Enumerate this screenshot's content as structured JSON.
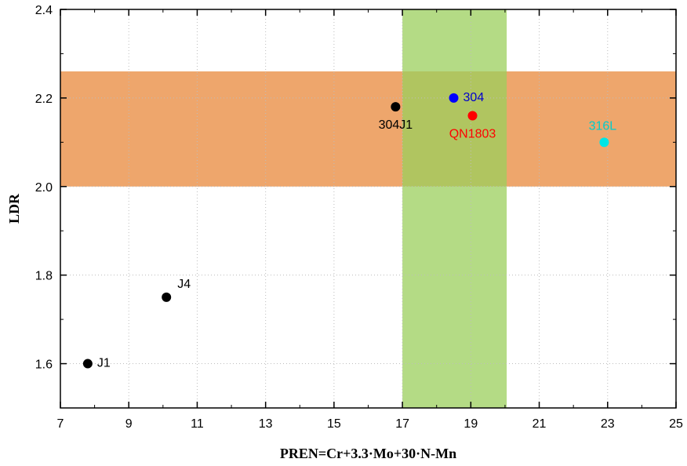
{
  "chart_data": {
    "type": "scatter",
    "title": "",
    "xlabel": "PREN=Cr+3.3·Mo+30·N-Mn",
    "ylabel": "LDR",
    "xlim": [
      7,
      25
    ],
    "ylim": [
      1.5,
      2.4
    ],
    "x_ticks": [
      7,
      9,
      11,
      13,
      15,
      17,
      19,
      21,
      23,
      25
    ],
    "y_ticks": [
      1.6,
      1.8,
      2.0,
      2.2,
      2.4
    ],
    "x_tick_labels": [
      "7",
      "9",
      "11",
      "13",
      "15",
      "17",
      "19",
      "21",
      "23",
      "25"
    ],
    "y_tick_labels": [
      "1.6",
      "1.8",
      "2.0",
      "2.2",
      "2.4"
    ],
    "grid": true,
    "bands": [
      {
        "orientation": "horizontal",
        "range": [
          2.0,
          2.26
        ],
        "color": "#eea66c"
      },
      {
        "orientation": "vertical",
        "range": [
          17.0,
          20.05
        ],
        "color": "#9bcf5c"
      }
    ],
    "points": [
      {
        "label": "J1",
        "x": 7.8,
        "y": 1.6,
        "color": "#000000",
        "label_color": "#000000",
        "label_pos": "right"
      },
      {
        "label": "J4",
        "x": 10.1,
        "y": 1.75,
        "color": "#000000",
        "label_color": "#000000",
        "label_pos": "upper-right"
      },
      {
        "label": "304J1",
        "x": 16.8,
        "y": 2.18,
        "color": "#000000",
        "label_color": "#000000",
        "label_pos": "below"
      },
      {
        "label": "304",
        "x": 18.5,
        "y": 2.2,
        "color": "#0000ff",
        "label_color": "#0000cc",
        "label_pos": "right"
      },
      {
        "label": "QN1803",
        "x": 19.05,
        "y": 2.16,
        "color": "#ff0000",
        "label_color": "#ff0000",
        "label_pos": "below"
      },
      {
        "label": "316L",
        "x": 22.9,
        "y": 2.1,
        "color": "#00e5e5",
        "label_color": "#00cccc",
        "label_pos": "above"
      }
    ]
  }
}
